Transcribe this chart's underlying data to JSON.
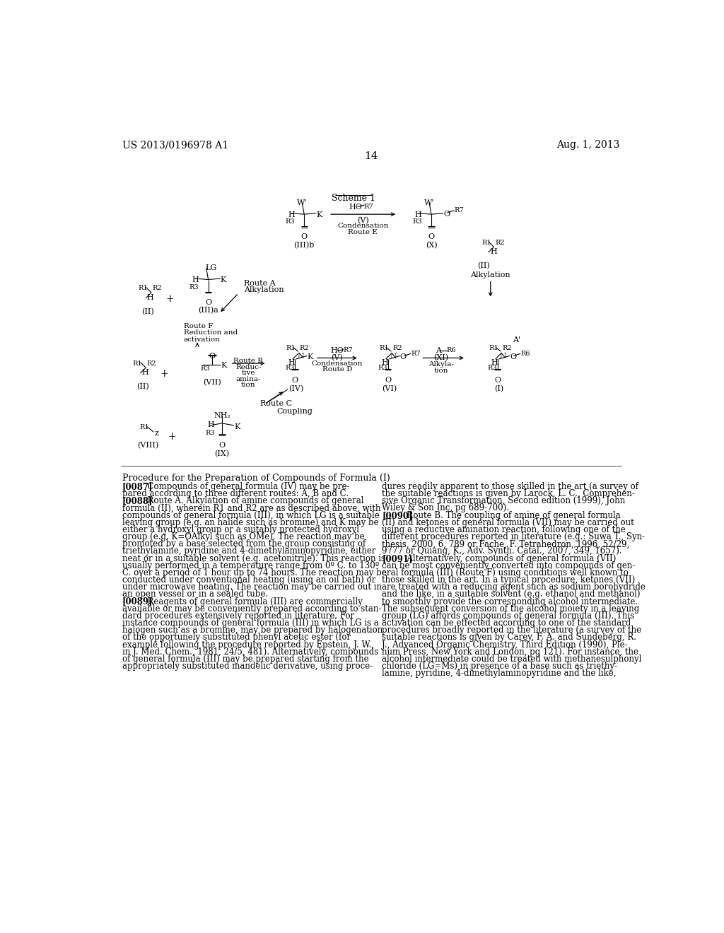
{
  "header_left": "US 2013/0196978 A1",
  "header_right": "Aug. 1, 2013",
  "page_number": "14",
  "bg_color": "#ffffff",
  "text_color": "#000000",
  "scheme_title": "Scheme 1",
  "procedure_title": "Procedure for the Preparation of Compounds of Formula (I)"
}
